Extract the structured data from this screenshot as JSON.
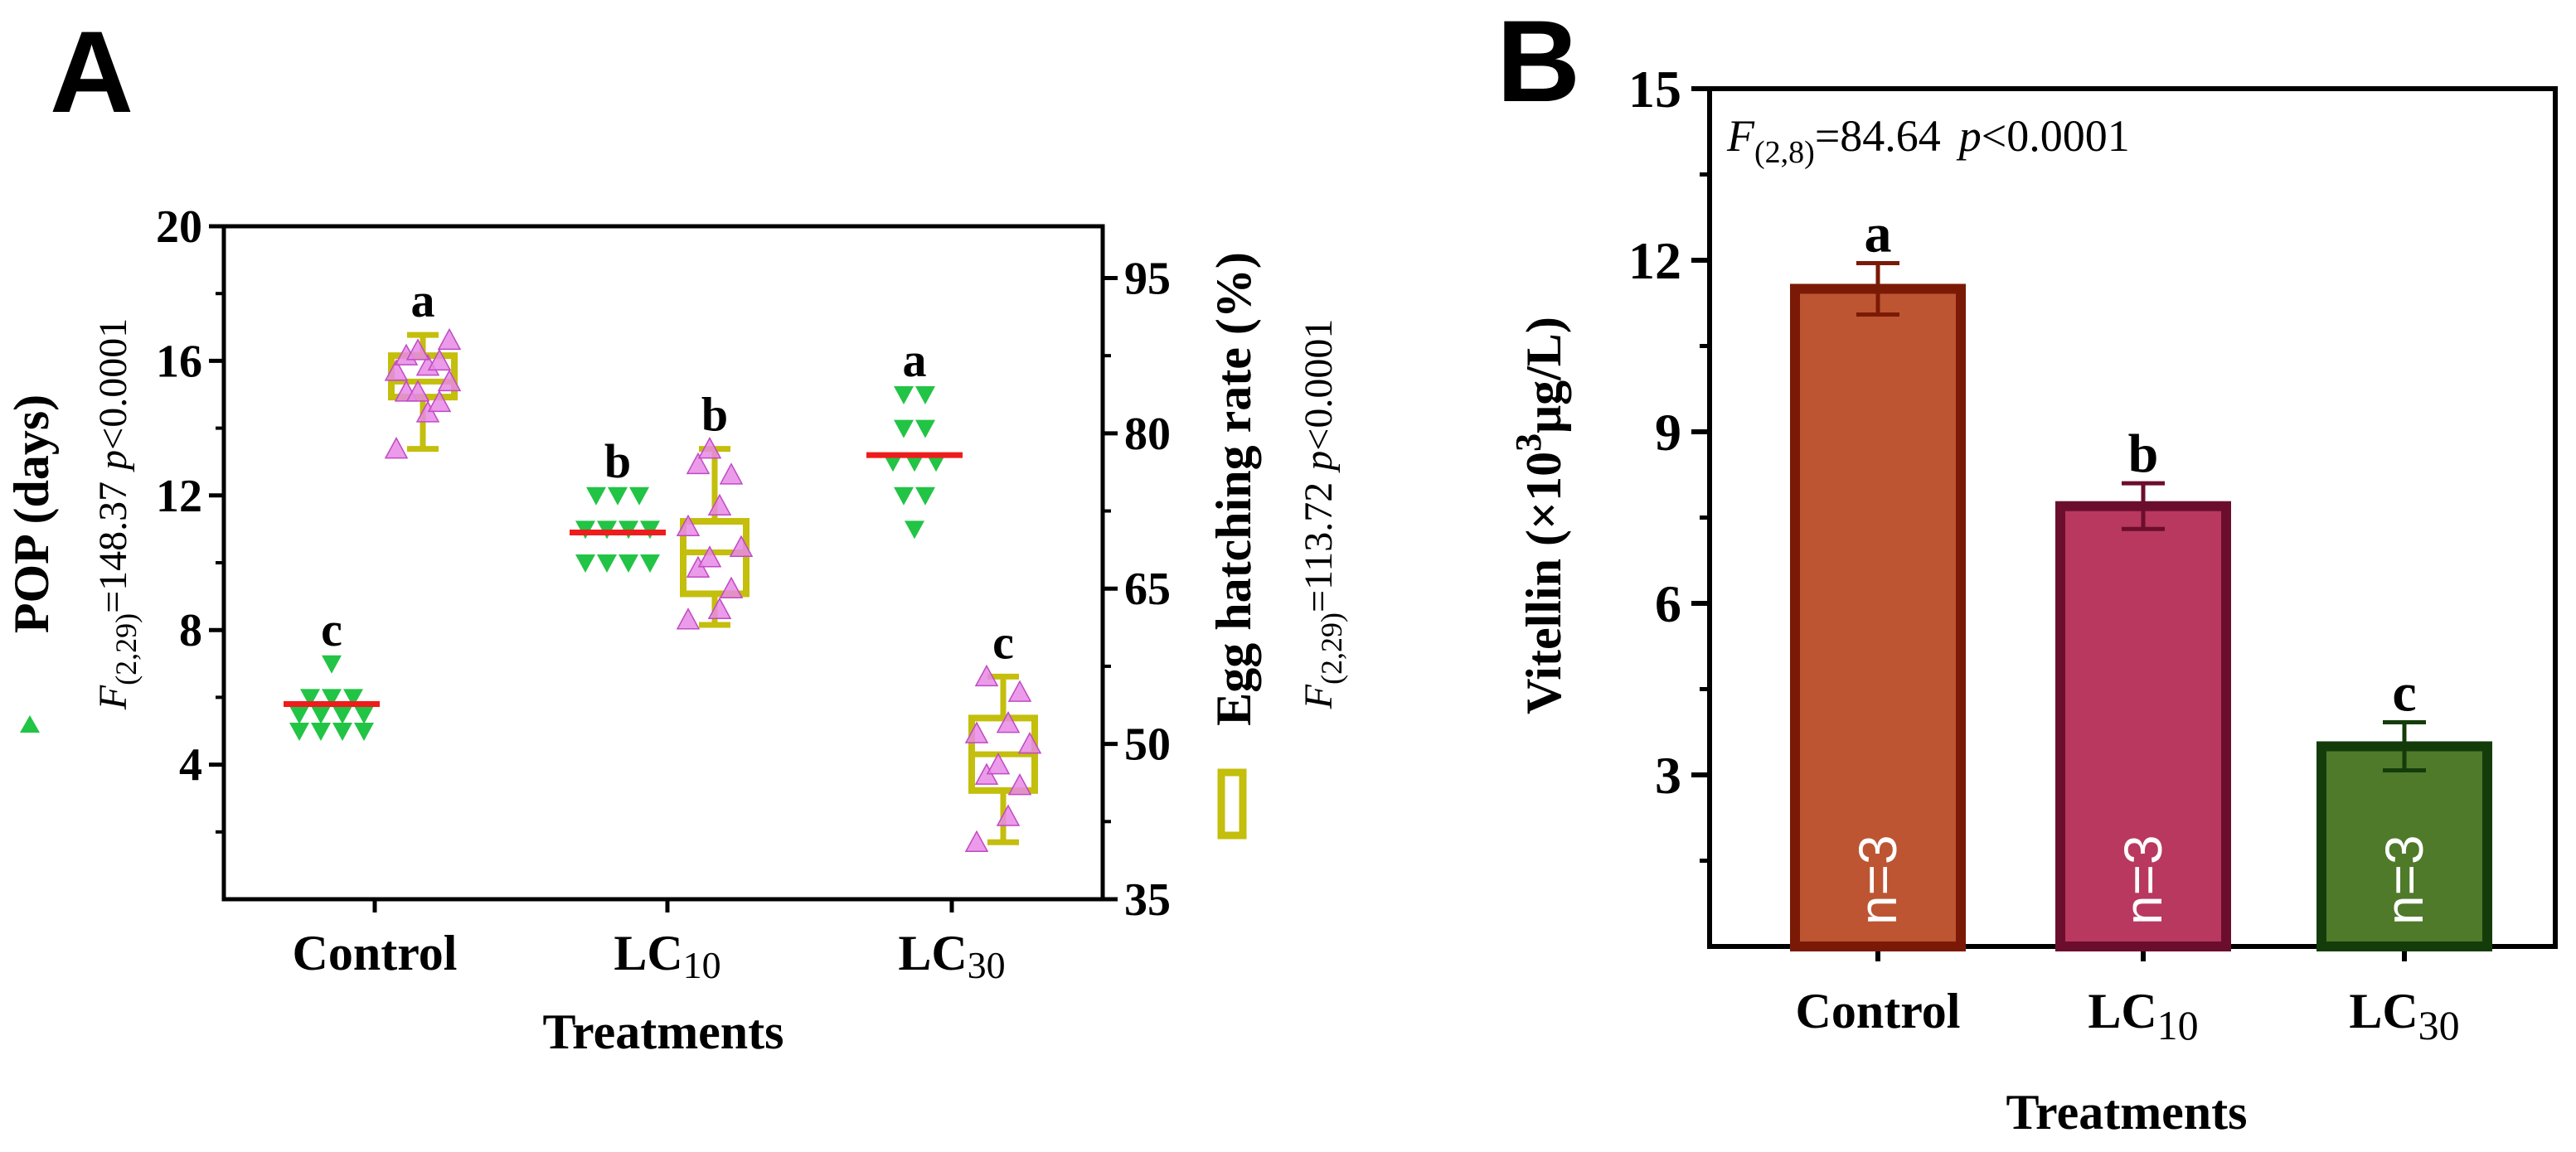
{
  "colors": {
    "pop_marker": "#22c445",
    "pop_median": "#ee1c1c",
    "hatch_box": "#c4be0c",
    "hatch_marker": "#e88ae6",
    "hatch_marker_edge": "#c04ac2",
    "bar_control": "#bd5532",
    "bar_control_edge": "#7a1a06",
    "bar_lc10": "#b9385f",
    "bar_lc10_edge": "#6b0e2e",
    "bar_lc30": "#4f7a2a",
    "bar_lc30_edge": "#143c0a"
  },
  "panelA": {
    "label": "A",
    "xlabel": "Treatments",
    "categories": [
      {
        "main": "Control",
        "sub": ""
      },
      {
        "main": "LC",
        "sub": "10"
      },
      {
        "main": "LC",
        "sub": "30"
      }
    ],
    "left_axis": {
      "title": "POP (days)",
      "ticks": [
        "4",
        "8",
        "12",
        "16",
        "20"
      ]
    },
    "right_axis": {
      "title": "Egg hatching rate (%)",
      "ticks": [
        "35",
        "50",
        "65",
        "80",
        "95"
      ]
    },
    "left_stat": {
      "f_sub": "(2,29)",
      "f_value": "=148.37",
      "p_text": "<0.0001"
    },
    "right_stat": {
      "f_sub": "(2,29)",
      "f_value": "=113.72",
      "p_text": "<0.0001"
    }
  },
  "panelB": {
    "label": "B",
    "xlabel": "Treatments",
    "ylabel": "Vitellin (×10³μg/L)",
    "ylabel_main": "Vitellin (×10",
    "ylabel_sup": "3",
    "ylabel_tail": "μg/L)",
    "yticks": [
      "3",
      "6",
      "9",
      "12",
      "15"
    ],
    "stat": {
      "f_sub": "(2,8)",
      "f_value": "=84.64",
      "p_text": "<0.0001"
    },
    "categories": [
      {
        "main": "Control",
        "sub": ""
      },
      {
        "main": "LC",
        "sub": "10"
      },
      {
        "main": "LC",
        "sub": "30"
      }
    ]
  },
  "chart_data": [
    {
      "type": "scatter",
      "title": "",
      "xlabel": "Treatments",
      "ylabel": "POP (days)",
      "categories": [
        "Control",
        "LC10",
        "LC30"
      ],
      "ylim": [
        0,
        20
      ],
      "series": [
        {
          "name": "POP (days)",
          "median": [
            5.8,
            10.9,
            13.2
          ],
          "letters": [
            "c",
            "b",
            "a"
          ],
          "points": [
            [
              5.0,
              5.0,
              5.0,
              5.0,
              5.5,
              5.5,
              5.5,
              5.5,
              6.0,
              6.0,
              6.0,
              7.0
            ],
            [
              10.0,
              10.0,
              10.0,
              10.0,
              11.0,
              11.0,
              11.0,
              11.0,
              12.0,
              12.0,
              12.0
            ],
            [
              11.0,
              12.0,
              12.0,
              13.0,
              13.0,
              13.0,
              14.0,
              14.0,
              15.0,
              15.0
            ]
          ]
        }
      ]
    },
    {
      "type": "box",
      "title": "",
      "xlabel": "Treatments",
      "ylabel": "Egg hatching rate (%)",
      "categories": [
        "Control",
        "LC10",
        "LC30"
      ],
      "ylim": [
        35,
        100
      ],
      "series": [
        {
          "name": "Egg hatching rate (%)",
          "letters": [
            "a",
            "b",
            "c"
          ],
          "boxes": [
            {
              "min": 78.5,
              "q1": 83.5,
              "median": 85.0,
              "q3": 87.5,
              "max": 89.5
            },
            {
              "min": 61.5,
              "q1": 64.5,
              "median": 68.5,
              "q3": 71.5,
              "max": 78.5
            },
            {
              "min": 40.5,
              "q1": 45.5,
              "median": 49.0,
              "q3": 52.5,
              "max": 56.5
            }
          ],
          "points": [
            [
              78.5,
              82,
              83,
              84,
              84,
              85,
              86,
              86.5,
              87,
              87.5,
              88,
              89
            ],
            [
              62,
              63,
              65,
              67,
              68,
              69,
              71,
              73,
              76,
              77,
              78.5
            ],
            [
              40.5,
              43,
              46,
              47,
              48,
              50,
              51,
              52,
              55,
              56.5
            ]
          ]
        }
      ]
    },
    {
      "type": "bar",
      "title": "",
      "xlabel": "Treatments",
      "ylabel": "Vitellin (×10³μg/L)",
      "categories": [
        "Control",
        "LC10",
        "LC30"
      ],
      "values": [
        11.5,
        7.7,
        3.5
      ],
      "errors": [
        0.45,
        0.4,
        0.42
      ],
      "letters": [
        "a",
        "b",
        "c"
      ],
      "n_labels": [
        "n=3",
        "n=3",
        "n=3"
      ],
      "ylim": [
        0,
        15
      ]
    }
  ]
}
